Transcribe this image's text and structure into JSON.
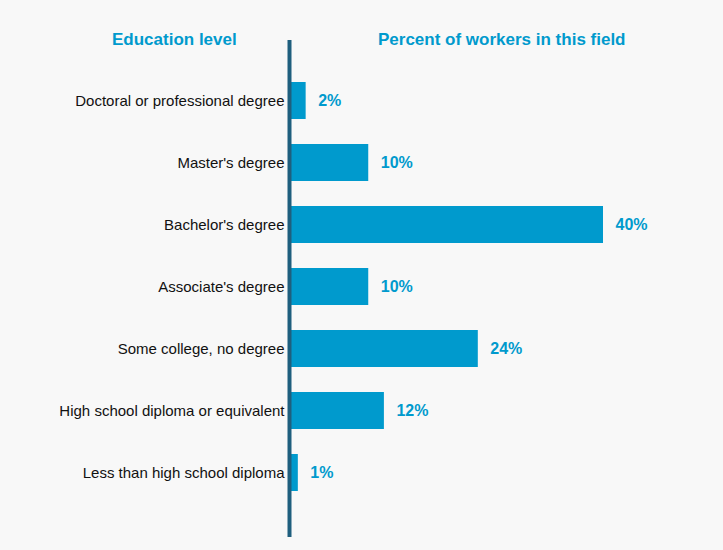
{
  "chart_data": {
    "type": "bar",
    "orientation": "horizontal",
    "ylabel": "Education level",
    "xlabel": "Percent of workers in this field",
    "categories": [
      "Doctoral or professional degree",
      "Master's degree",
      "Bachelor's degree",
      "Associate's degree",
      "Some college, no degree",
      "High school diploma or equivalent",
      "Less than high school diploma"
    ],
    "values": [
      2,
      10,
      40,
      10,
      24,
      12,
      1
    ],
    "value_labels": [
      "2%",
      "10%",
      "40%",
      "10%",
      "24%",
      "12%",
      "1%"
    ],
    "color": "#009acd",
    "data_labels": true,
    "tick_labels": "y",
    "grid": false
  }
}
